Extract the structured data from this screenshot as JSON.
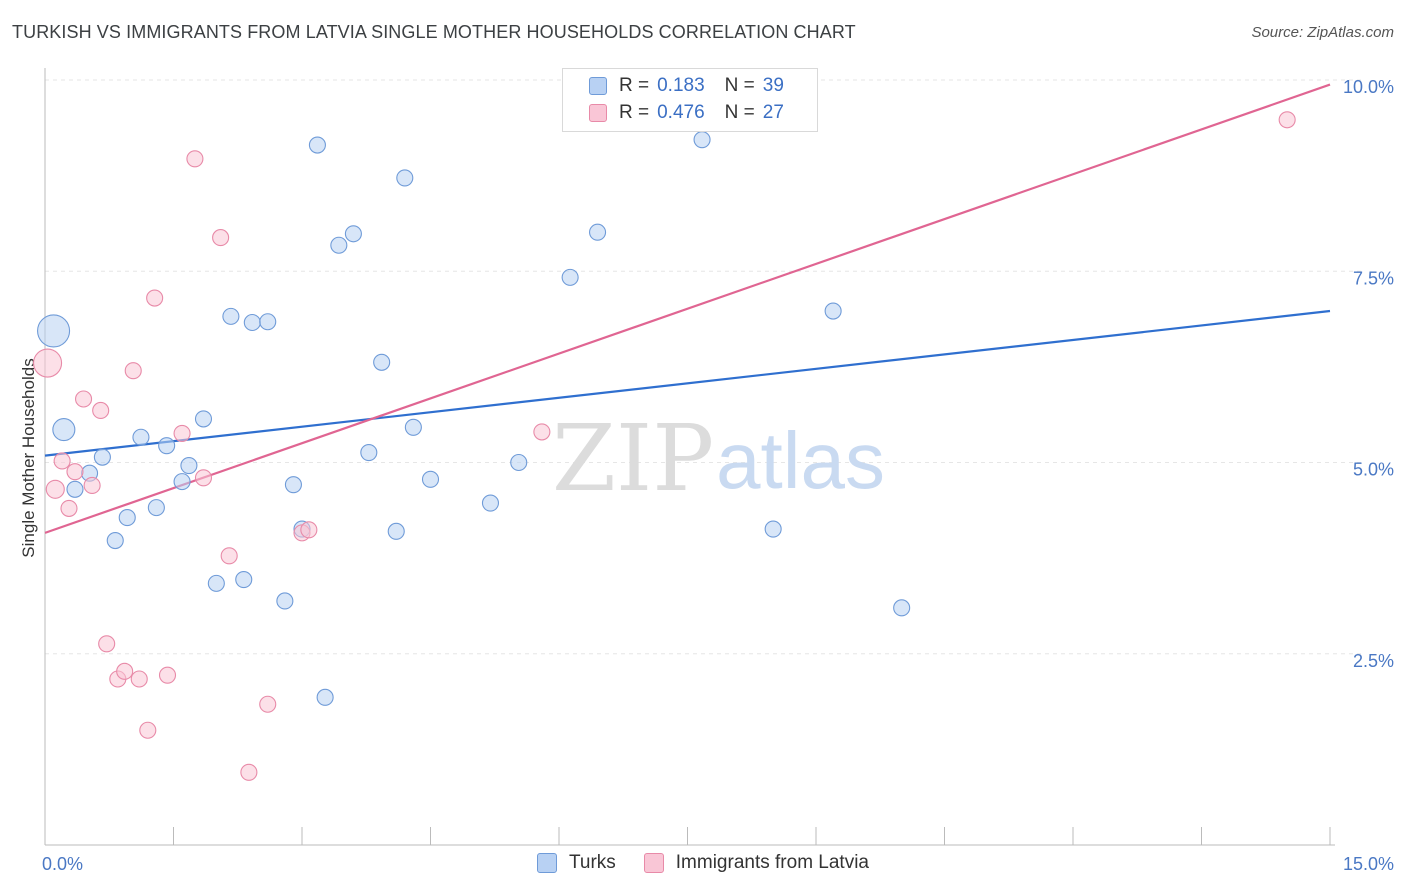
{
  "header": {
    "title": "TURKISH VS IMMIGRANTS FROM LATVIA SINGLE MOTHER HOUSEHOLDS CORRELATION CHART",
    "source": "Source: ZipAtlas.com"
  },
  "watermark": {
    "zip": "ZIP",
    "atlas": "atlas"
  },
  "colors": {
    "turks_fill": "#b8d1f3",
    "turks_stroke": "#6f9bd8",
    "turks_line": "#2f6fcf",
    "latvia_fill": "#f9c6d6",
    "latvia_stroke": "#e88aa8",
    "latvia_line": "#e06592",
    "grid": "#e6e6e6",
    "tick_label": "#4a78c4"
  },
  "legend": {
    "r_label": "R =",
    "n_label": "N =",
    "rows": [
      {
        "r": "0.183",
        "n": "39"
      },
      {
        "r": "0.476",
        "n": "27"
      }
    ]
  },
  "bottom_legend": [
    {
      "label": "Turks"
    },
    {
      "label": "Immigrants from Latvia"
    }
  ],
  "chart_data": {
    "type": "scatter",
    "title": "TURKISH VS IMMIGRANTS FROM LATVIA SINGLE MOTHER HOUSEHOLDS CORRELATION CHART",
    "xlabel": "",
    "ylabel": "Single Mother Households",
    "xlim": [
      0,
      15
    ],
    "ylim": [
      0,
      10.0
    ],
    "x_tick_labels": [
      {
        "value": 0,
        "label": "0.0%"
      },
      {
        "value": 15,
        "label": "15.0%"
      }
    ],
    "y_ticks": [
      {
        "value": 2.5,
        "label": "2.5%"
      },
      {
        "value": 5.0,
        "label": "5.0%"
      },
      {
        "value": 7.5,
        "label": "7.5%"
      },
      {
        "value": 10.0,
        "label": "10.0%"
      }
    ],
    "x_minor_ticks": [
      1.5,
      3.0,
      4.5,
      6.0,
      7.5,
      9.0,
      10.5,
      12.0,
      13.5,
      15.0
    ],
    "grid": true,
    "legend_position": "top-center",
    "series": [
      {
        "name": "Turks",
        "r": 0.183,
        "n": 39,
        "trend": [
          [
            0,
            5.09
          ],
          [
            15,
            6.98
          ]
        ],
        "points": [
          {
            "x": 0.1,
            "y": 6.72,
            "s": 16
          },
          {
            "x": 0.22,
            "y": 5.43,
            "s": 11
          },
          {
            "x": 0.35,
            "y": 4.65,
            "s": 8
          },
          {
            "x": 0.52,
            "y": 4.86,
            "s": 8
          },
          {
            "x": 0.67,
            "y": 5.07,
            "s": 8
          },
          {
            "x": 0.82,
            "y": 3.98,
            "s": 8
          },
          {
            "x": 0.96,
            "y": 4.28,
            "s": 8
          },
          {
            "x": 1.12,
            "y": 5.33,
            "s": 8
          },
          {
            "x": 1.3,
            "y": 4.41,
            "s": 8
          },
          {
            "x": 1.42,
            "y": 5.22,
            "s": 8
          },
          {
            "x": 1.6,
            "y": 4.75,
            "s": 8
          },
          {
            "x": 1.68,
            "y": 4.96,
            "s": 8
          },
          {
            "x": 1.85,
            "y": 5.57,
            "s": 8
          },
          {
            "x": 2.0,
            "y": 3.42,
            "s": 8
          },
          {
            "x": 2.17,
            "y": 6.91,
            "s": 8
          },
          {
            "x": 2.32,
            "y": 3.47,
            "s": 8
          },
          {
            "x": 2.42,
            "y": 6.83,
            "s": 8
          },
          {
            "x": 2.6,
            "y": 6.84,
            "s": 8
          },
          {
            "x": 2.8,
            "y": 3.19,
            "s": 8
          },
          {
            "x": 2.9,
            "y": 4.71,
            "s": 8
          },
          {
            "x": 3.0,
            "y": 4.13,
            "s": 8
          },
          {
            "x": 3.18,
            "y": 9.15,
            "s": 8
          },
          {
            "x": 3.27,
            "y": 1.93,
            "s": 8
          },
          {
            "x": 3.43,
            "y": 7.84,
            "s": 8
          },
          {
            "x": 3.6,
            "y": 7.99,
            "s": 8
          },
          {
            "x": 3.78,
            "y": 5.13,
            "s": 8
          },
          {
            "x": 3.93,
            "y": 6.31,
            "s": 8
          },
          {
            "x": 4.1,
            "y": 4.1,
            "s": 8
          },
          {
            "x": 4.2,
            "y": 8.72,
            "s": 8
          },
          {
            "x": 4.3,
            "y": 5.46,
            "s": 8
          },
          {
            "x": 4.5,
            "y": 4.78,
            "s": 8
          },
          {
            "x": 5.2,
            "y": 4.47,
            "s": 8
          },
          {
            "x": 5.53,
            "y": 5.0,
            "s": 8
          },
          {
            "x": 6.13,
            "y": 7.42,
            "s": 8
          },
          {
            "x": 6.45,
            "y": 8.01,
            "s": 8
          },
          {
            "x": 7.67,
            "y": 9.22,
            "s": 8
          },
          {
            "x": 8.5,
            "y": 4.13,
            "s": 8
          },
          {
            "x": 9.2,
            "y": 6.98,
            "s": 8
          },
          {
            "x": 10.0,
            "y": 3.1,
            "s": 8
          }
        ]
      },
      {
        "name": "Immigrants from Latvia",
        "r": 0.476,
        "n": 27,
        "trend": [
          [
            0,
            4.08
          ],
          [
            15,
            9.94
          ]
        ],
        "points": [
          {
            "x": 0.03,
            "y": 6.3,
            "s": 14
          },
          {
            "x": 0.12,
            "y": 4.65,
            "s": 9
          },
          {
            "x": 0.2,
            "y": 5.02,
            "s": 8
          },
          {
            "x": 0.28,
            "y": 4.4,
            "s": 8
          },
          {
            "x": 0.35,
            "y": 4.88,
            "s": 8
          },
          {
            "x": 0.45,
            "y": 5.83,
            "s": 8
          },
          {
            "x": 0.55,
            "y": 4.7,
            "s": 8
          },
          {
            "x": 0.65,
            "y": 5.68,
            "s": 8
          },
          {
            "x": 0.72,
            "y": 2.63,
            "s": 8
          },
          {
            "x": 0.85,
            "y": 2.17,
            "s": 8
          },
          {
            "x": 0.93,
            "y": 2.27,
            "s": 8
          },
          {
            "x": 1.03,
            "y": 6.2,
            "s": 8
          },
          {
            "x": 1.1,
            "y": 2.17,
            "s": 8
          },
          {
            "x": 1.2,
            "y": 1.5,
            "s": 8
          },
          {
            "x": 1.28,
            "y": 7.15,
            "s": 8
          },
          {
            "x": 1.43,
            "y": 2.22,
            "s": 8
          },
          {
            "x": 1.6,
            "y": 5.38,
            "s": 8
          },
          {
            "x": 1.75,
            "y": 8.97,
            "s": 8
          },
          {
            "x": 1.85,
            "y": 4.8,
            "s": 8
          },
          {
            "x": 2.05,
            "y": 7.94,
            "s": 8
          },
          {
            "x": 2.15,
            "y": 3.78,
            "s": 8
          },
          {
            "x": 2.38,
            "y": 0.95,
            "s": 8
          },
          {
            "x": 2.6,
            "y": 1.84,
            "s": 8
          },
          {
            "x": 3.0,
            "y": 4.08,
            "s": 8
          },
          {
            "x": 3.08,
            "y": 4.12,
            "s": 8
          },
          {
            "x": 5.8,
            "y": 5.4,
            "s": 8
          },
          {
            "x": 14.5,
            "y": 9.48,
            "s": 8
          }
        ]
      }
    ]
  }
}
